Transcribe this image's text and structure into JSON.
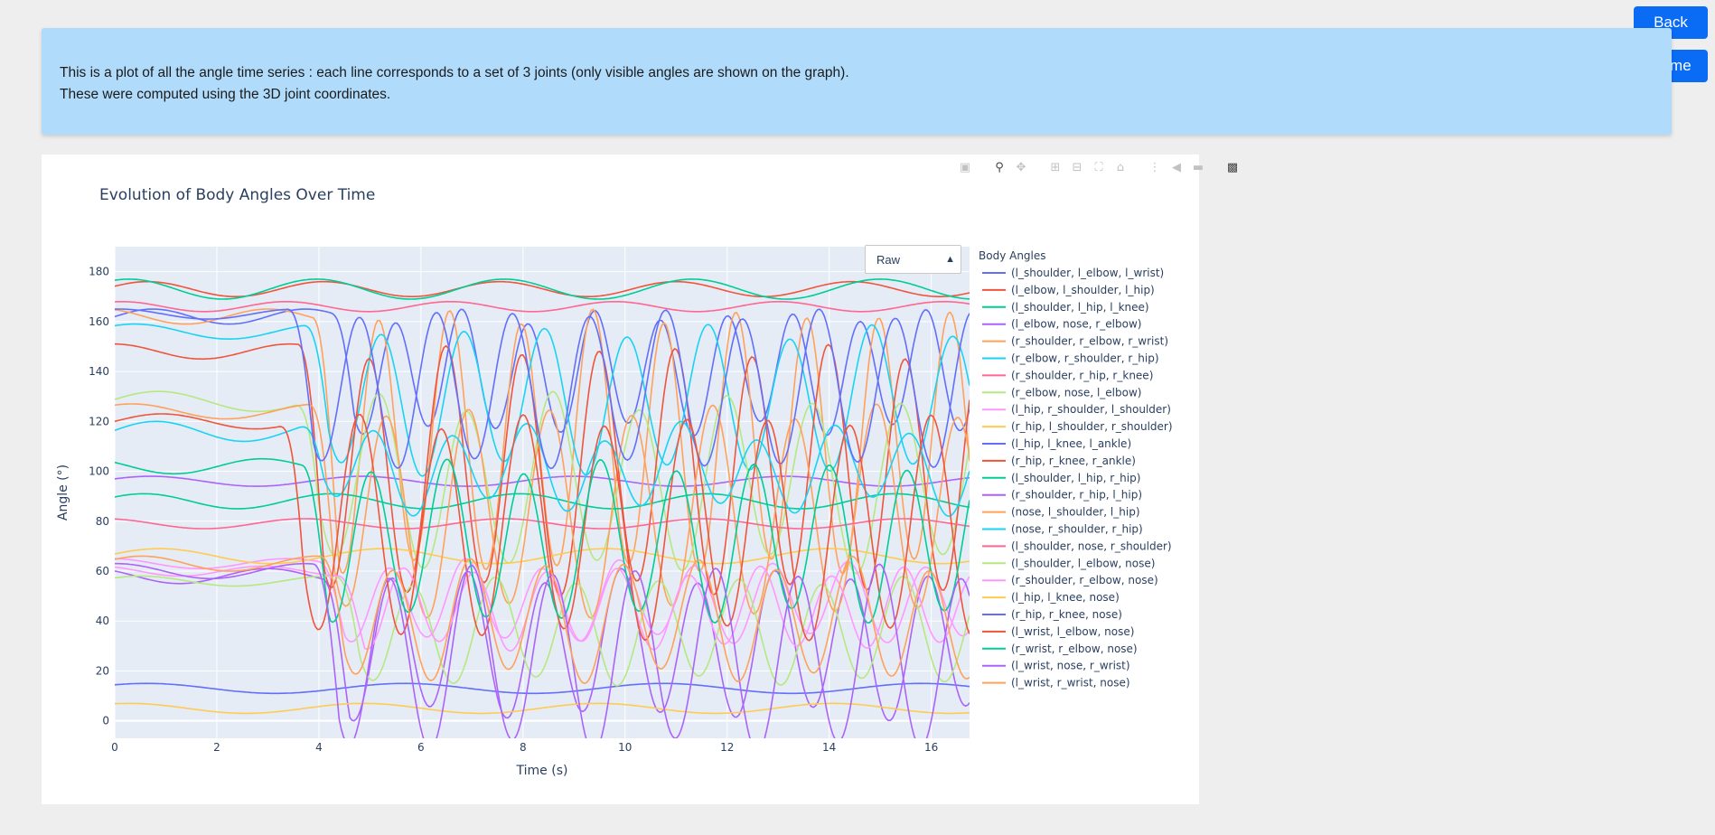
{
  "nav": {
    "back_label": "Back",
    "home_label": "Home"
  },
  "info": {
    "line1": "This is a plot of all the angle time series : each line corresponds to a set of 3 joints (only visible angles are shown on the graph).",
    "line2": "These were computed using the 3D joint coordinates."
  },
  "dropdown": {
    "selected": "Raw"
  },
  "modebar_icons": [
    "camera-icon",
    "zoom-icon",
    "pan-icon",
    "zoom-in-icon",
    "zoom-out-icon",
    "autoscale-icon",
    "reset-axes-icon",
    "spike-lines-icon",
    "hover-closest-icon",
    "hover-compare-icon",
    "plotly-logo-icon"
  ],
  "chart_data": {
    "type": "line",
    "title": "Evolution of Body Angles Over Time",
    "xlabel": "Time (s)",
    "ylabel": "Angle (°)",
    "xlim": [
      0,
      16.75
    ],
    "ylim": [
      -7,
      190
    ],
    "xticks": [
      0,
      2,
      4,
      6,
      8,
      10,
      12,
      14,
      16
    ],
    "yticks": [
      0,
      20,
      40,
      60,
      80,
      100,
      120,
      140,
      160,
      180
    ],
    "grid": true,
    "plot_bgcolor": "#e5ecf6",
    "legend_title": "Body Angles",
    "legend_position": "right",
    "series": [
      {
        "name": "(l_shoulder, l_elbow, l_wrist)",
        "color": "#636efa",
        "base": 162,
        "amp": 3,
        "period": 1.3,
        "phase": 0.0,
        "start": 4.2,
        "spike": 45
      },
      {
        "name": "(l_elbow, l_shoulder, l_hip)",
        "color": "#ef553b",
        "base": 173,
        "amp": 3,
        "period": 1.5,
        "phase": 0.4,
        "start": 99,
        "spike": 0
      },
      {
        "name": "(l_shoulder, l_hip, l_knee)",
        "color": "#00cc96",
        "base": 173,
        "amp": 4,
        "period": 1.6,
        "phase": 1.1,
        "start": 99,
        "spike": 0
      },
      {
        "name": "(l_elbow, nose, r_elbow)",
        "color": "#ab63fa",
        "base": 96,
        "amp": 2,
        "period": 1.8,
        "phase": 0.5,
        "start": 99,
        "spike": 0
      },
      {
        "name": "(r_shoulder, r_elbow, r_wrist)",
        "color": "#ffa15a",
        "base": 162,
        "amp": 3,
        "period": 1.4,
        "phase": 2.0,
        "start": 3.9,
        "spike": 100
      },
      {
        "name": "(r_elbow, r_shoulder, r_hip)",
        "color": "#19d3f3",
        "base": 156,
        "amp": 3,
        "period": 1.6,
        "phase": 0.9,
        "start": 3.7,
        "spike": 55
      },
      {
        "name": "(r_shoulder, r_hip, r_knee)",
        "color": "#ff6692",
        "base": 166,
        "amp": 2,
        "period": 1.4,
        "phase": 1.3,
        "start": 99,
        "spike": 0
      },
      {
        "name": "(r_elbow, nose, l_elbow)",
        "color": "#b6e880",
        "base": 128,
        "amp": 4,
        "period": 1.7,
        "phase": 0.2,
        "start": 3.5,
        "spike": 65
      },
      {
        "name": "(l_hip, r_shoulder, l_shoulder)",
        "color": "#ff97ff",
        "base": 63,
        "amp": 2,
        "period": 1.5,
        "phase": 1.7,
        "start": 4.0,
        "spike": 30
      },
      {
        "name": "(r_hip, l_shoulder, r_shoulder)",
        "color": "#fecb52",
        "base": 66,
        "amp": 3,
        "period": 1.9,
        "phase": 0.3,
        "start": 99,
        "spike": 0
      },
      {
        "name": "(l_hip, l_knee, l_ankle)",
        "color": "#636efa",
        "base": 13,
        "amp": 2,
        "period": 2.2,
        "phase": 0.8,
        "start": 99,
        "spike": 0
      },
      {
        "name": "(r_hip, r_knee, r_ankle)",
        "color": "#ef553b",
        "base": 148,
        "amp": 3,
        "period": 1.5,
        "phase": 1.6,
        "start": 3.6,
        "spike": 95
      },
      {
        "name": "(l_shoulder, l_hip, r_hip)",
        "color": "#00cc96",
        "base": 88,
        "amp": 3,
        "period": 1.6,
        "phase": 0.6,
        "start": 99,
        "spike": 0
      },
      {
        "name": "(r_shoulder, r_hip, l_hip)",
        "color": "#ab63fa",
        "base": 58,
        "amp": 3,
        "period": 1.5,
        "phase": 2.4,
        "start": 4.1,
        "spike": 55
      },
      {
        "name": "(nose, l_shoulder, l_hip)",
        "color": "#ffa15a",
        "base": 124,
        "amp": 3,
        "period": 1.6,
        "phase": 1.0,
        "start": 3.8,
        "spike": 80
      },
      {
        "name": "(nose, r_shoulder, r_hip)",
        "color": "#19d3f3",
        "base": 116,
        "amp": 4,
        "period": 1.5,
        "phase": 0.1,
        "start": 3.6,
        "spike": 30
      },
      {
        "name": "(l_shoulder, nose, r_shoulder)",
        "color": "#ff6692",
        "base": 79,
        "amp": 2,
        "period": 1.7,
        "phase": 1.9,
        "start": 99,
        "spike": 0
      },
      {
        "name": "(l_shoulder, l_elbow, nose)",
        "color": "#b6e880",
        "base": 56,
        "amp": 2,
        "period": 1.6,
        "phase": 0.7,
        "start": 4.3,
        "spike": 40
      },
      {
        "name": "(r_shoulder, r_elbow, nose)",
        "color": "#ff97ff",
        "base": 60,
        "amp": 2,
        "period": 1.4,
        "phase": 2.2,
        "start": 4.4,
        "spike": 30
      },
      {
        "name": "(l_hip, l_knee, nose)",
        "color": "#fecb52",
        "base": 5,
        "amp": 2,
        "period": 2.0,
        "phase": 1.2,
        "start": 99,
        "spike": 0
      },
      {
        "name": "(r_hip, r_knee, nose)",
        "color": "#636efa",
        "base": 163,
        "amp": 2,
        "period": 1.5,
        "phase": 1.4,
        "start": 3.4,
        "spike": 60
      },
      {
        "name": "(l_wrist, l_elbow, nose)",
        "color": "#ef553b",
        "base": 120,
        "amp": 3,
        "period": 1.6,
        "phase": 0.0,
        "start": 3.2,
        "spike": 85
      },
      {
        "name": "(r_wrist, r_elbow, nose)",
        "color": "#00cc96",
        "base": 102,
        "amp": 3,
        "period": 1.5,
        "phase": 2.6,
        "start": 3.7,
        "spike": 60
      },
      {
        "name": "(l_wrist, nose, r_wrist)",
        "color": "#ab63fa",
        "base": 60,
        "amp": 3,
        "period": 1.6,
        "phase": 1.5,
        "start": 3.9,
        "spike": 70
      },
      {
        "name": "(l_wrist, r_wrist, nose)",
        "color": "#ffa15a",
        "base": 63,
        "amp": 3,
        "period": 1.5,
        "phase": 0.6,
        "start": 4.0,
        "spike": 45
      }
    ]
  }
}
